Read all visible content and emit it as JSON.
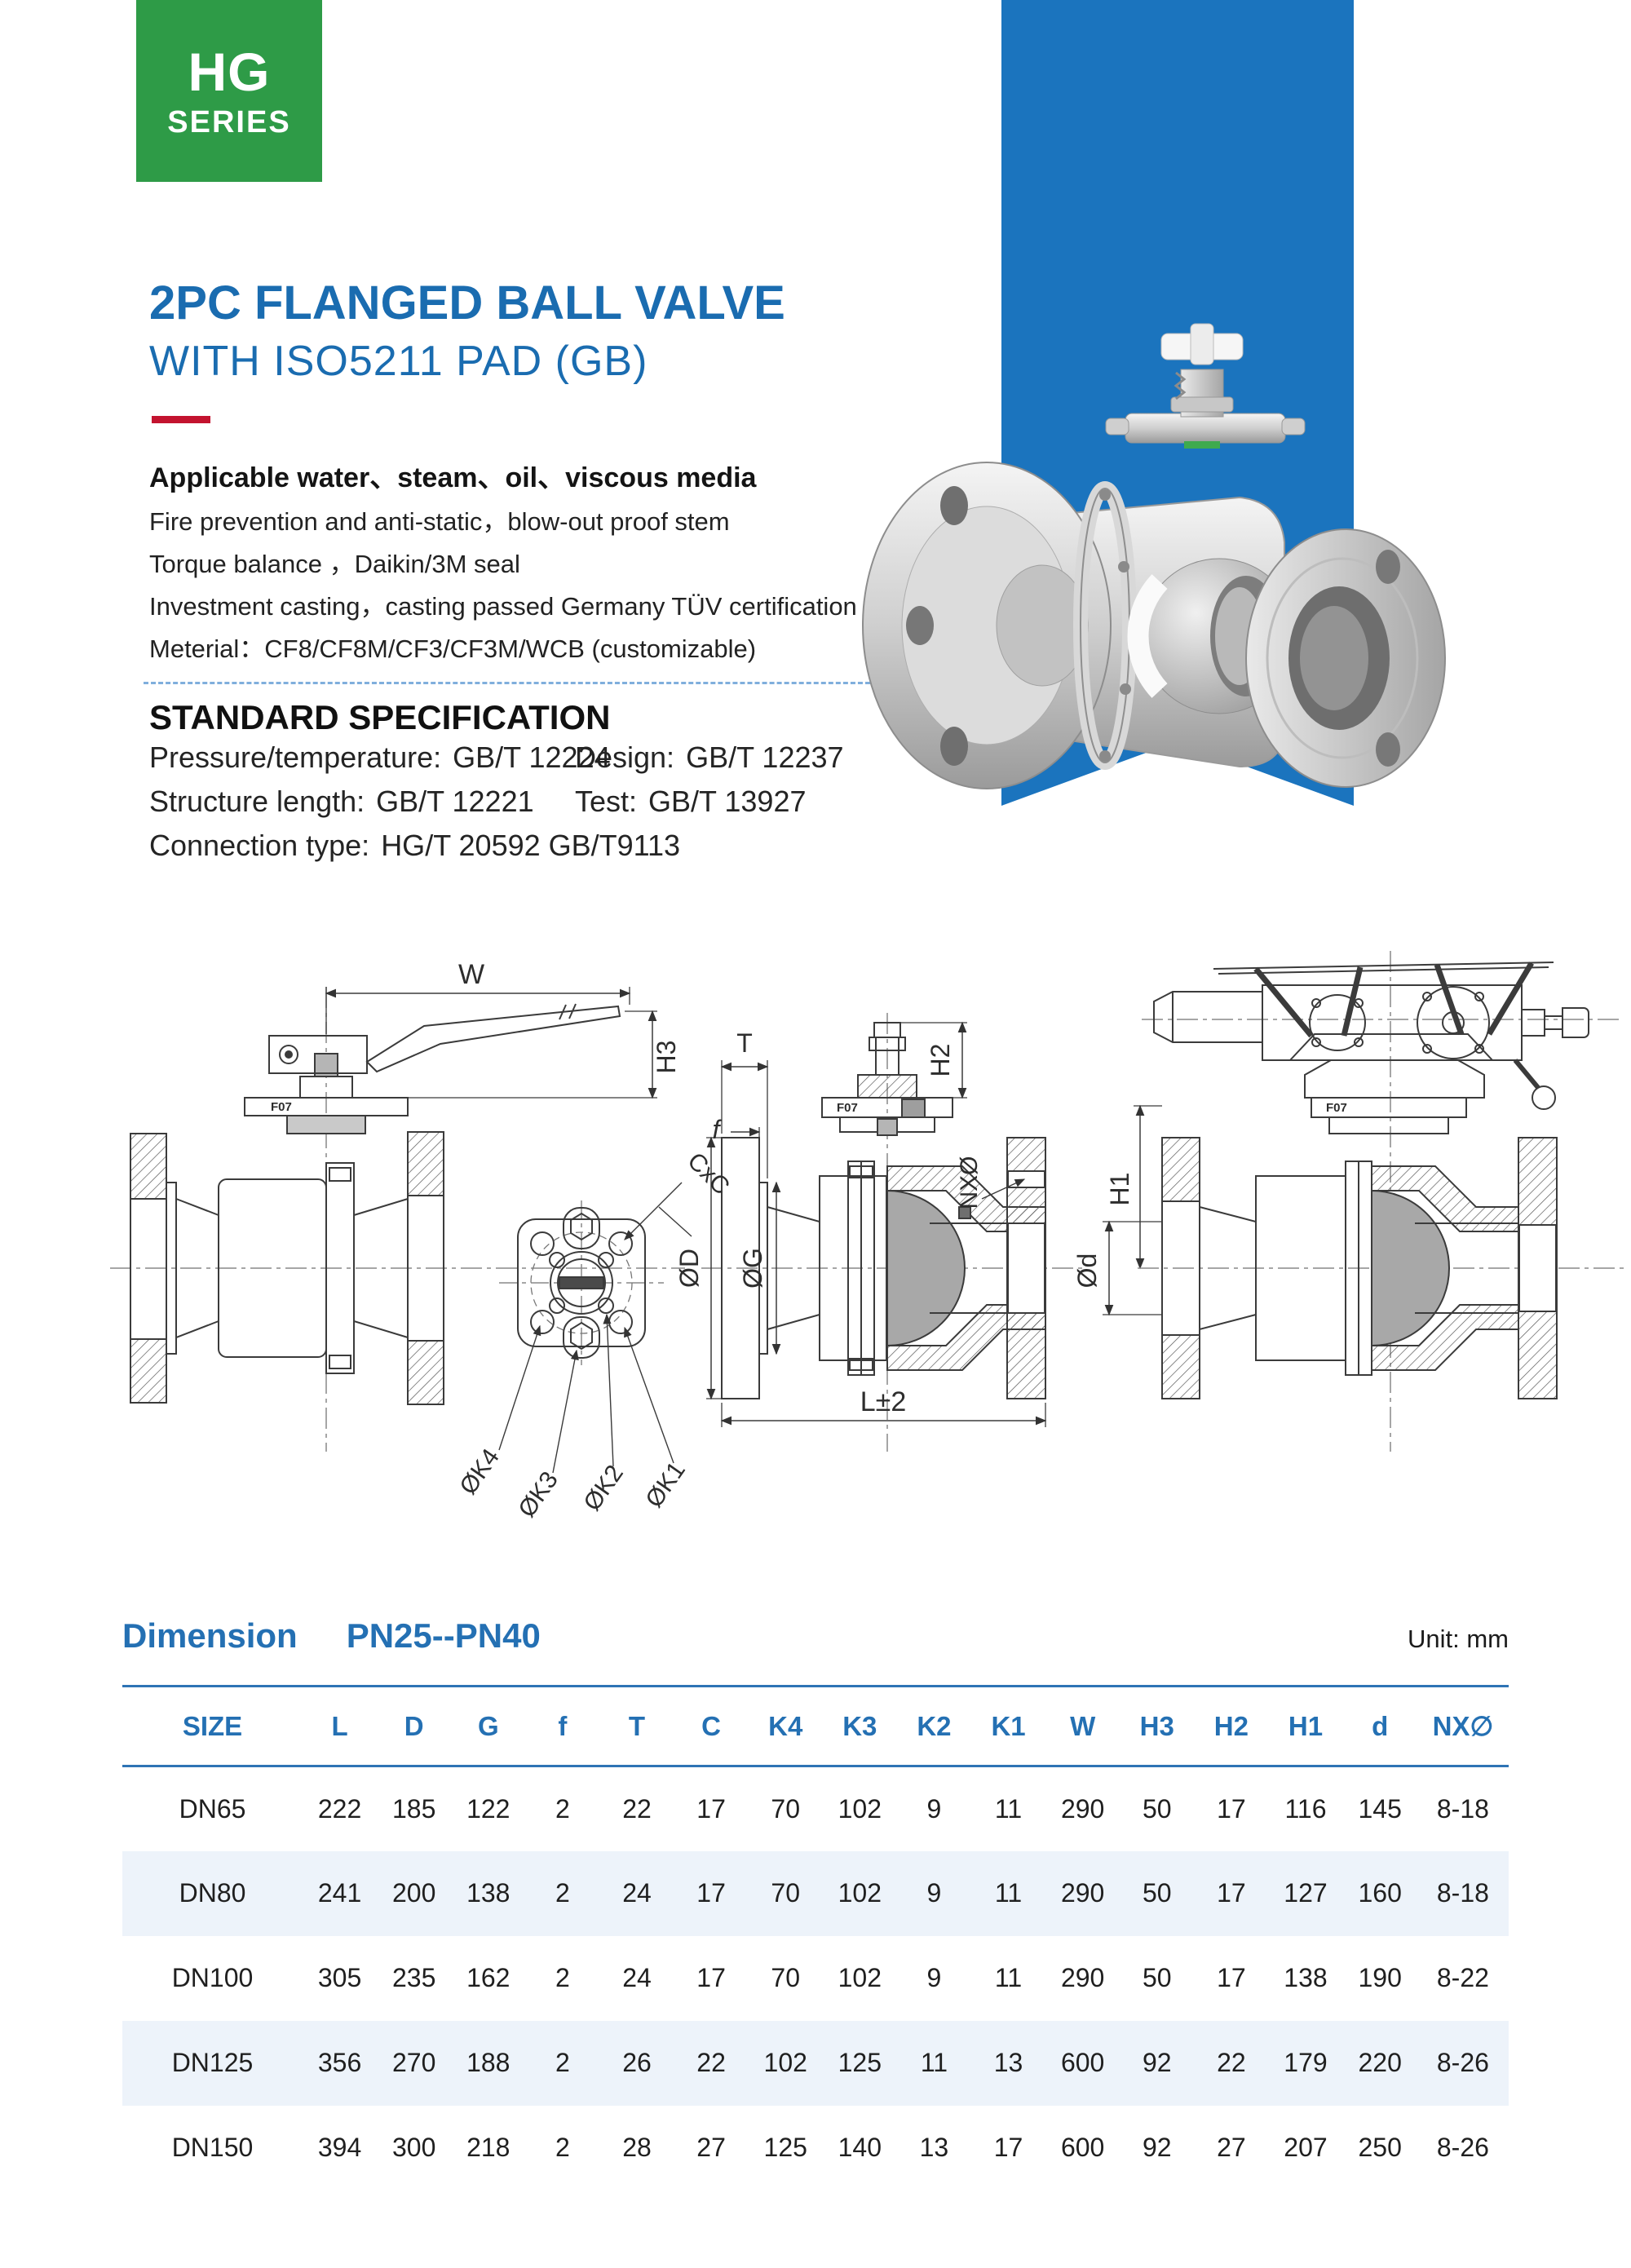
{
  "badge": {
    "line1": "HG",
    "line2": "SERIES"
  },
  "header": {
    "title_line1": "2PC FLANGED BALL VALVE",
    "title_line2": "WITH ISO5211 PAD (GB)"
  },
  "features": {
    "headline": "Applicable water、steam、oil、viscous media",
    "lines": [
      "Fire prevention and anti-static，blow-out proof stem",
      "Torque balance ，Daikin/3M seal",
      "Investment casting，casting passed Germany TÜV certification",
      "Meterial：CF8/CF8M/CF3/CF3M/WCB (customizable)"
    ]
  },
  "spec": {
    "heading": "STANDARD SPECIFICATION",
    "left": [
      {
        "label": "Pressure/temperature:",
        "value": "GB/T 12224"
      },
      {
        "label": "Structure length:",
        "value": "GB/T 12221"
      },
      {
        "label": "Connection type:",
        "value": "HG/T 20592  GB/T9113"
      }
    ],
    "right": [
      {
        "label": "Design:",
        "value": "GB/T 12237"
      },
      {
        "label": "Test:",
        "value": "GB/T 13927"
      }
    ]
  },
  "drawings": {
    "pad_code": "F07",
    "labels": {
      "w": "W",
      "h3": "H3",
      "cxc": "CxC",
      "k4": "ØK4",
      "k3": "ØK3",
      "k2": "ØK2",
      "k1": "ØK1",
      "t": "T",
      "f": "f",
      "dD": "ØD",
      "dG": "ØG",
      "h2": "H2",
      "nx": "NXØ",
      "h1": "H1",
      "dd": "Ød",
      "l": "L±2"
    }
  },
  "table": {
    "title": "Dimension",
    "subtitle": "PN25--PN40",
    "unit": "Unit: mm",
    "columns": [
      "SIZE",
      "L",
      "D",
      "G",
      "f",
      "T",
      "C",
      "K4",
      "K3",
      "K2",
      "K1",
      "W",
      "H3",
      "H2",
      "H1",
      "d",
      "NX∅"
    ],
    "rows": [
      [
        "DN65",
        "222",
        "185",
        "122",
        "2",
        "22",
        "17",
        "70",
        "102",
        "9",
        "11",
        "290",
        "50",
        "17",
        "116",
        "145",
        "8-18"
      ],
      [
        "DN80",
        "241",
        "200",
        "138",
        "2",
        "24",
        "17",
        "70",
        "102",
        "9",
        "11",
        "290",
        "50",
        "17",
        "127",
        "160",
        "8-18"
      ],
      [
        "DN100",
        "305",
        "235",
        "162",
        "2",
        "24",
        "17",
        "70",
        "102",
        "9",
        "11",
        "290",
        "50",
        "17",
        "138",
        "190",
        "8-22"
      ],
      [
        "DN125",
        "356",
        "270",
        "188",
        "2",
        "26",
        "22",
        "102",
        "125",
        "11",
        "13",
        "600",
        "92",
        "22",
        "179",
        "220",
        "8-26"
      ],
      [
        "DN150",
        "394",
        "300",
        "218",
        "2",
        "28",
        "27",
        "125",
        "140",
        "13",
        "17",
        "600",
        "92",
        "27",
        "207",
        "250",
        "8-26"
      ]
    ]
  },
  "colors": {
    "green": "#2E9B47",
    "banner": "#1B74BE",
    "titleblue": "#1A6CB0",
    "tableblue": "#2470B3",
    "rowalt": "#EDF3FA",
    "red": "#C3132F",
    "dash": "#7FAEDC"
  }
}
